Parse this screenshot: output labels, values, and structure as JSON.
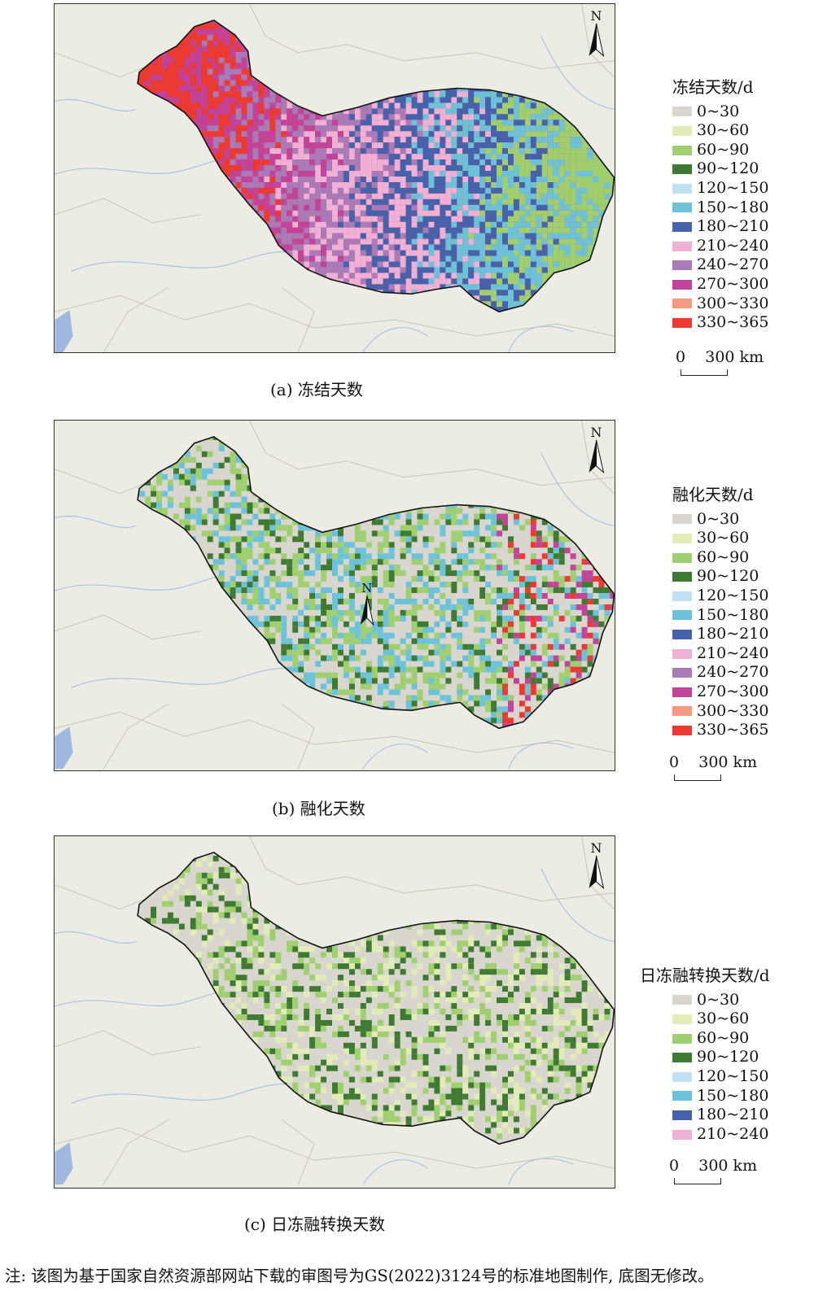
{
  "panels": [
    {
      "caption": "(a) 冻结天数",
      "legend_title": "冻结天数/d",
      "north_label": "N",
      "scale_label": "0    300 km",
      "legend": [
        {
          "label": "0~30",
          "color": "#d9d6cf"
        },
        {
          "label": "30~60",
          "color": "#e3ecb9"
        },
        {
          "label": "60~90",
          "color": "#9fcf6f"
        },
        {
          "label": "90~120",
          "color": "#3f7a33"
        },
        {
          "label": "120~150",
          "color": "#bfe2f0"
        },
        {
          "label": "150~180",
          "color": "#6cc3d9"
        },
        {
          "label": "180~210",
          "color": "#4563ad"
        },
        {
          "label": "210~240",
          "color": "#f0b1d6"
        },
        {
          "label": "240~270",
          "color": "#a97bb8"
        },
        {
          "label": "270~300",
          "color": "#c2439a"
        },
        {
          "label": "300~330",
          "color": "#f59a80"
        },
        {
          "label": "330~365",
          "color": "#ea3a32"
        }
      ],
      "fill_colors": [
        "#ea3a32",
        "#c2439a",
        "#a97bb8",
        "#f0b1d6",
        "#4563ad",
        "#6cc3d9",
        "#9fcf6f"
      ]
    },
    {
      "caption": "(b) 融化天数",
      "legend_title": "融化天数/d",
      "north_label": "N",
      "inner_north_label": "N",
      "scale_label": "0    300 km",
      "legend": [
        {
          "label": "0~30",
          "color": "#d9d6cf"
        },
        {
          "label": "30~60",
          "color": "#e3ecb9"
        },
        {
          "label": "60~90",
          "color": "#9fcf6f"
        },
        {
          "label": "90~120",
          "color": "#3f7a33"
        },
        {
          "label": "120~150",
          "color": "#bfe2f0"
        },
        {
          "label": "150~180",
          "color": "#6cc3d9"
        },
        {
          "label": "180~210",
          "color": "#4563ad"
        },
        {
          "label": "210~240",
          "color": "#f0b1d6"
        },
        {
          "label": "240~270",
          "color": "#a97bb8"
        },
        {
          "label": "270~300",
          "color": "#c2439a"
        },
        {
          "label": "300~330",
          "color": "#f59a80"
        },
        {
          "label": "330~365",
          "color": "#ea3a32"
        }
      ],
      "fill_colors": [
        "#d9d6cf",
        "#9fcf6f",
        "#6cc3d9",
        "#3f7a33",
        "#c2439a",
        "#ea3a32"
      ]
    },
    {
      "caption": "(c) 日冻融转换天数",
      "legend_title": "日冻融转换天数/d",
      "north_label": "N",
      "scale_label": "0    300 km",
      "legend": [
        {
          "label": "0~30",
          "color": "#d9d6cf"
        },
        {
          "label": "30~60",
          "color": "#e3ecb9"
        },
        {
          "label": "60~90",
          "color": "#9fcf6f"
        },
        {
          "label": "90~120",
          "color": "#3f7a33"
        },
        {
          "label": "120~150",
          "color": "#bfe2f0"
        },
        {
          "label": "150~180",
          "color": "#6cc3d9"
        },
        {
          "label": "180~210",
          "color": "#4563ad"
        },
        {
          "label": "210~240",
          "color": "#f0b1d6"
        }
      ],
      "fill_colors": [
        "#d9d6cf",
        "#e3ecb9",
        "#9fcf6f",
        "#3f7a33"
      ]
    }
  ],
  "note": "注: 该图为基于国家自然资源部网站下载的审图号为GS(2022)3124号的标准地图制作, 底图无修改。"
}
